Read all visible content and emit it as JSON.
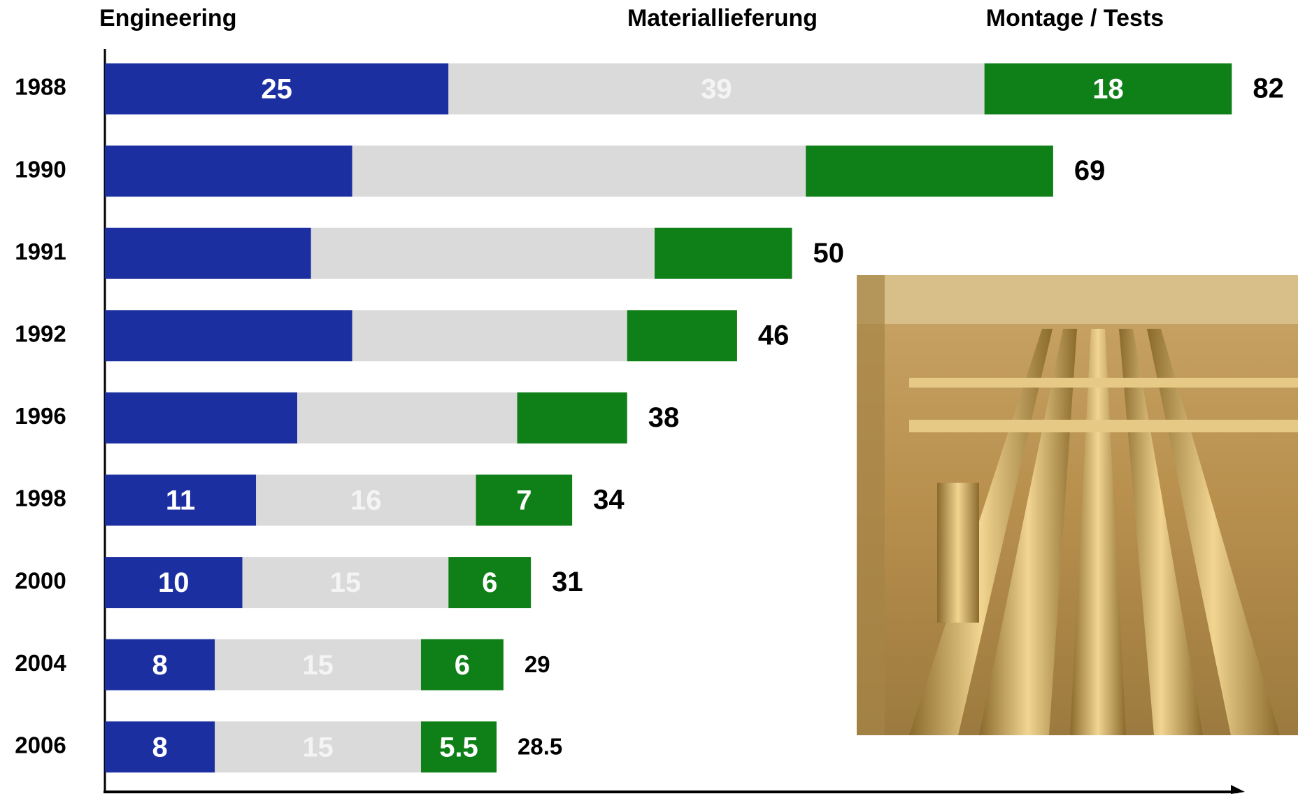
{
  "chart_data": {
    "type": "stacked-bar-horizontal",
    "categories": [
      "1988",
      "1990",
      "1991",
      "1992",
      "1996",
      "1998",
      "2000",
      "2004",
      "2006"
    ],
    "series": [
      {
        "name": "Engineering",
        "color": "#1c2fa0",
        "values": [
          25,
          18,
          15,
          18,
          14,
          11,
          10,
          8,
          8
        ],
        "value_labels": [
          "25",
          null,
          null,
          null,
          null,
          "11",
          "10",
          "8",
          "8"
        ]
      },
      {
        "name": "Materiallieferung",
        "color": "#dadada",
        "values": [
          39,
          33,
          25,
          20,
          16,
          16,
          15,
          15,
          15
        ],
        "value_labels": [
          "39",
          null,
          null,
          null,
          null,
          "16",
          "15",
          "15",
          "15"
        ]
      },
      {
        "name": "Montage / Tests",
        "color": "#0f7f17",
        "values": [
          18,
          18,
          10,
          8,
          8,
          7,
          6,
          6,
          5.5
        ],
        "value_labels": [
          "18",
          null,
          null,
          null,
          null,
          "7",
          "6",
          "6",
          "5.5"
        ]
      }
    ],
    "totals": [
      82,
      69,
      50,
      46,
      38,
      34,
      31,
      29,
      28.5
    ],
    "xlim": [
      0,
      83
    ]
  }
}
